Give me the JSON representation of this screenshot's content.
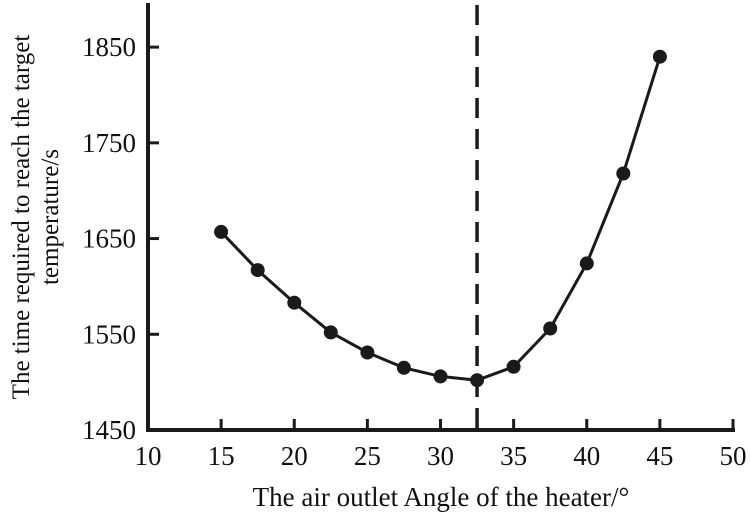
{
  "chart_data": {
    "type": "line",
    "x": [
      15,
      17.5,
      20,
      22.5,
      25,
      27.5,
      30,
      32.5,
      35,
      37.5,
      40,
      42.5,
      45
    ],
    "y": [
      1657,
      1617,
      1583,
      1552,
      1531,
      1515,
      1506,
      1502,
      1516,
      1556,
      1624,
      1718,
      1840
    ],
    "xlabel": "The air outlet Angle of the heater/°",
    "ylabel_line1": "The time required to reach the target",
    "ylabel_line2": "temperature/s",
    "xlim": [
      10,
      50
    ],
    "ylim": [
      1450,
      1894
    ],
    "x_ticks": [
      10,
      15,
      20,
      25,
      30,
      35,
      40,
      45,
      50
    ],
    "y_ticks": [
      1450,
      1550,
      1650,
      1750,
      1850
    ],
    "vline_x": 32.5,
    "grid": false,
    "legend": "none",
    "line_color": "#1a1a1a",
    "marker": "filled-circle"
  }
}
